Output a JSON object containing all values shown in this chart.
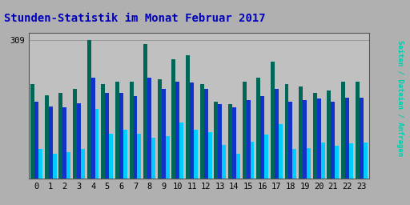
{
  "title": "Stunden-Statistik im Monat Februar 2017",
  "ylabel_right": "Seiten / Dateien / Anfragen",
  "ymax": 309,
  "hours": [
    0,
    1,
    2,
    3,
    4,
    5,
    6,
    7,
    8,
    9,
    10,
    11,
    12,
    13,
    14,
    15,
    16,
    17,
    18,
    19,
    20,
    21,
    22,
    23
  ],
  "green_bars": [
    210,
    185,
    190,
    200,
    309,
    210,
    215,
    215,
    300,
    220,
    265,
    275,
    210,
    170,
    165,
    215,
    225,
    260,
    210,
    205,
    190,
    195,
    215,
    215
  ],
  "blue_bars": [
    170,
    160,
    158,
    168,
    225,
    190,
    190,
    183,
    225,
    200,
    215,
    213,
    200,
    165,
    158,
    175,
    183,
    200,
    170,
    175,
    178,
    170,
    180,
    180
  ],
  "cyan_bars": [
    65,
    55,
    58,
    65,
    155,
    100,
    108,
    100,
    90,
    95,
    125,
    108,
    103,
    75,
    55,
    82,
    98,
    120,
    65,
    68,
    80,
    72,
    78,
    80
  ],
  "bar_width": 0.28,
  "colors": {
    "green": "#006655",
    "blue": "#1133cc",
    "cyan": "#00ccff",
    "background_outer": "#b0b0b0",
    "background_plot": "#c0c0c0",
    "title_color": "#0000bb",
    "grid_color": "#999999",
    "ylabel_right_color": "#00ccaa",
    "tick_color": "#000000",
    "border_color": "#555555"
  },
  "title_fontsize": 10,
  "tick_fontsize": 7.5
}
